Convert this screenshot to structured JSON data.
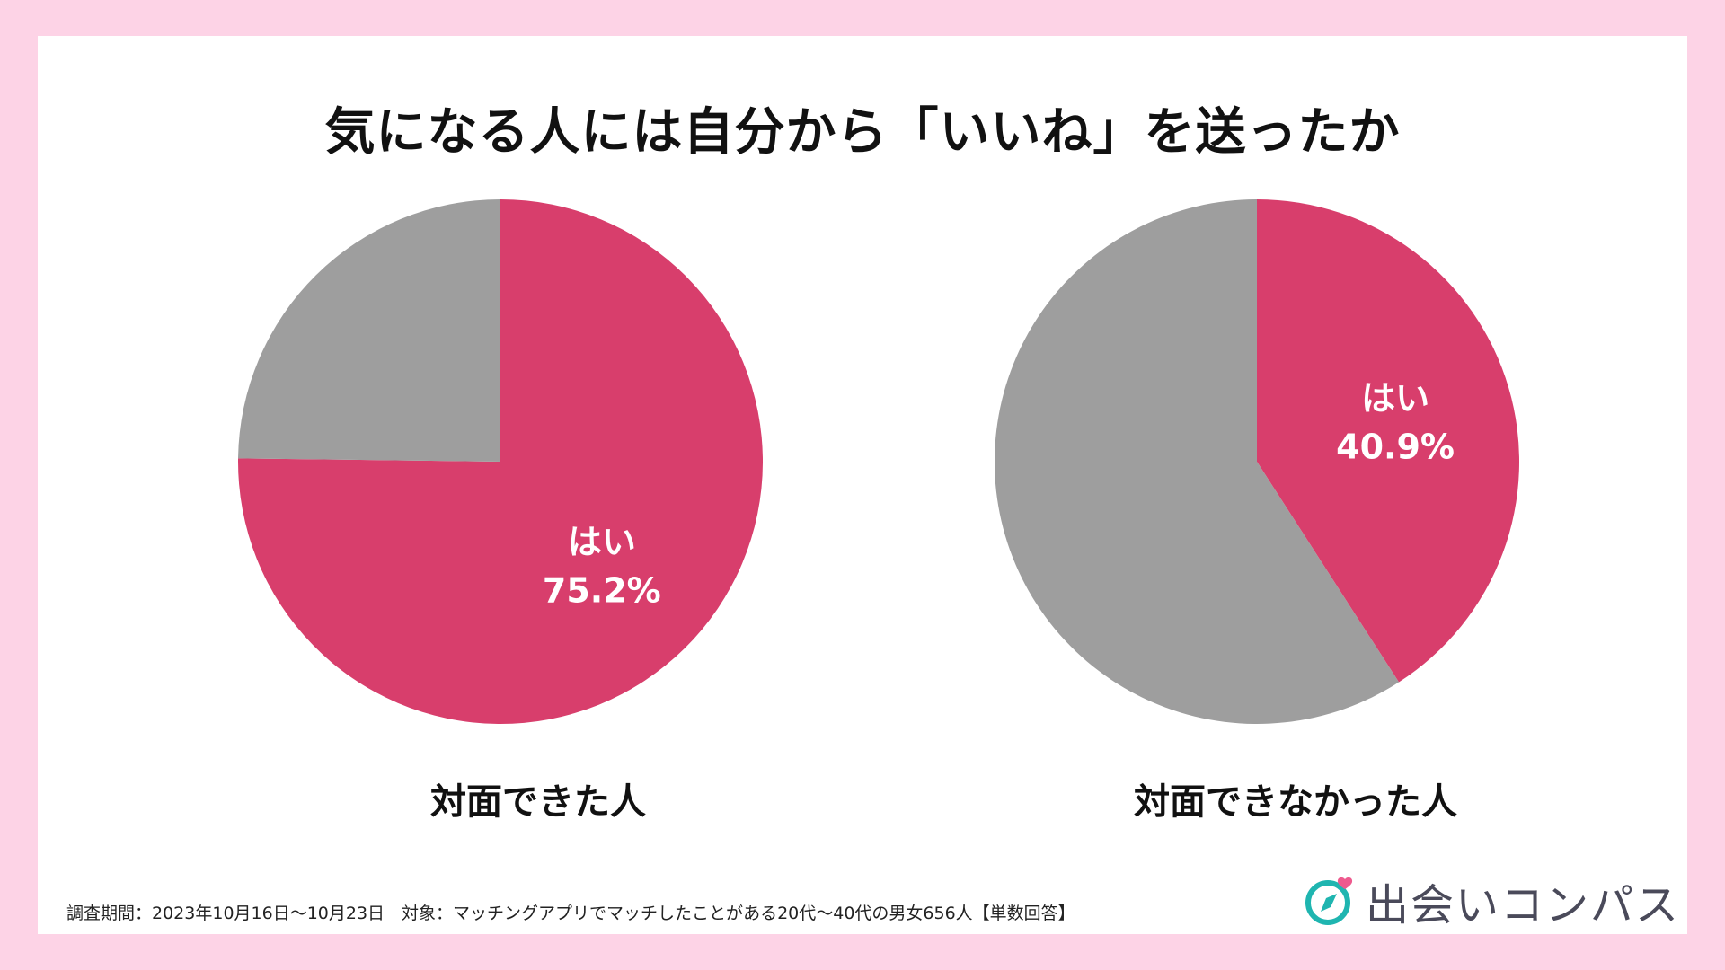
{
  "title": "気になる人には自分から「いいね」を送ったか",
  "colors": {
    "yes": "#d83e6c",
    "no": "#9e9e9e",
    "background": "#fdd3e6",
    "brand_teal": "#1fb5b0",
    "brand_heart": "#ee5a8e"
  },
  "chart_data": [
    {
      "type": "pie",
      "caption": "対面できた人",
      "slices": [
        {
          "label": "はい",
          "value": 75.2,
          "value_label": "75.2%",
          "color": "#d83e6c"
        },
        {
          "label": "",
          "value": 24.8,
          "value_label": "",
          "color": "#9e9e9e"
        }
      ]
    },
    {
      "type": "pie",
      "caption": "対面できなかった人",
      "slices": [
        {
          "label": "はい",
          "value": 40.9,
          "value_label": "40.9%",
          "color": "#d83e6c"
        },
        {
          "label": "",
          "value": 59.1,
          "value_label": "",
          "color": "#9e9e9e"
        }
      ]
    }
  ],
  "footnote": "調査期間：2023年10月16日〜10月23日　対象：マッチングアプリでマッチしたことがある20代〜40代の男女656人【単数回答】",
  "brand": {
    "name": "出会いコンパス",
    "icon": "compass-heart-icon"
  }
}
